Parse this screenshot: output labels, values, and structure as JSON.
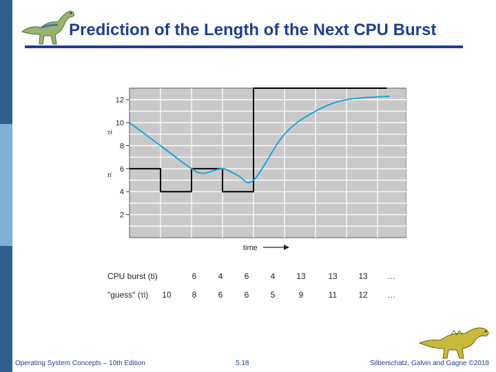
{
  "slide": {
    "title": "Prediction of the Length of the Next CPU Burst",
    "footer_left": "Operating System Concepts – 10th Edition",
    "footer_mid": "5.18",
    "footer_right": "Silberschatz, Galvin and Gagne ©2018"
  },
  "colors": {
    "title": "#1f3f8f",
    "sidebar_dark": "#2f5f8f",
    "sidebar_light": "#7fb0d6",
    "grid_bg": "#c9c9c9",
    "burst_line": "#000000",
    "guess_line": "#1aa3e0"
  },
  "chart_data": {
    "type": "line",
    "ylim": [
      0,
      13
    ],
    "yticks": [
      2,
      4,
      6,
      8,
      10,
      12
    ],
    "xlabel": "time",
    "ylabel_guess": "τi",
    "ylabel_burst": "ti",
    "series": [
      {
        "x": [
          0,
          1,
          1,
          2,
          2,
          3,
          3,
          4,
          4,
          8.3
        ],
        "y": [
          6,
          6,
          4,
          4,
          6,
          6,
          4,
          4,
          13,
          13
        ]
      },
      {
        "x": [
          0,
          1,
          2,
          2.4,
          3,
          3.5,
          4,
          5,
          6,
          7,
          8.4
        ],
        "y": [
          10,
          8,
          6,
          5.6,
          6,
          5.4,
          5,
          9,
          11,
          12,
          12.3
        ]
      }
    ]
  },
  "table": {
    "row1_label": "CPU burst (ti)",
    "row1_values": [
      "6",
      "4",
      "6",
      "4",
      "13",
      "13",
      "13"
    ],
    "row2_label": "\"guess\" (τi)",
    "row2_values": [
      "10",
      "8",
      "6",
      "6",
      "5",
      "9",
      "11",
      "12"
    ],
    "ellipsis": "…"
  }
}
